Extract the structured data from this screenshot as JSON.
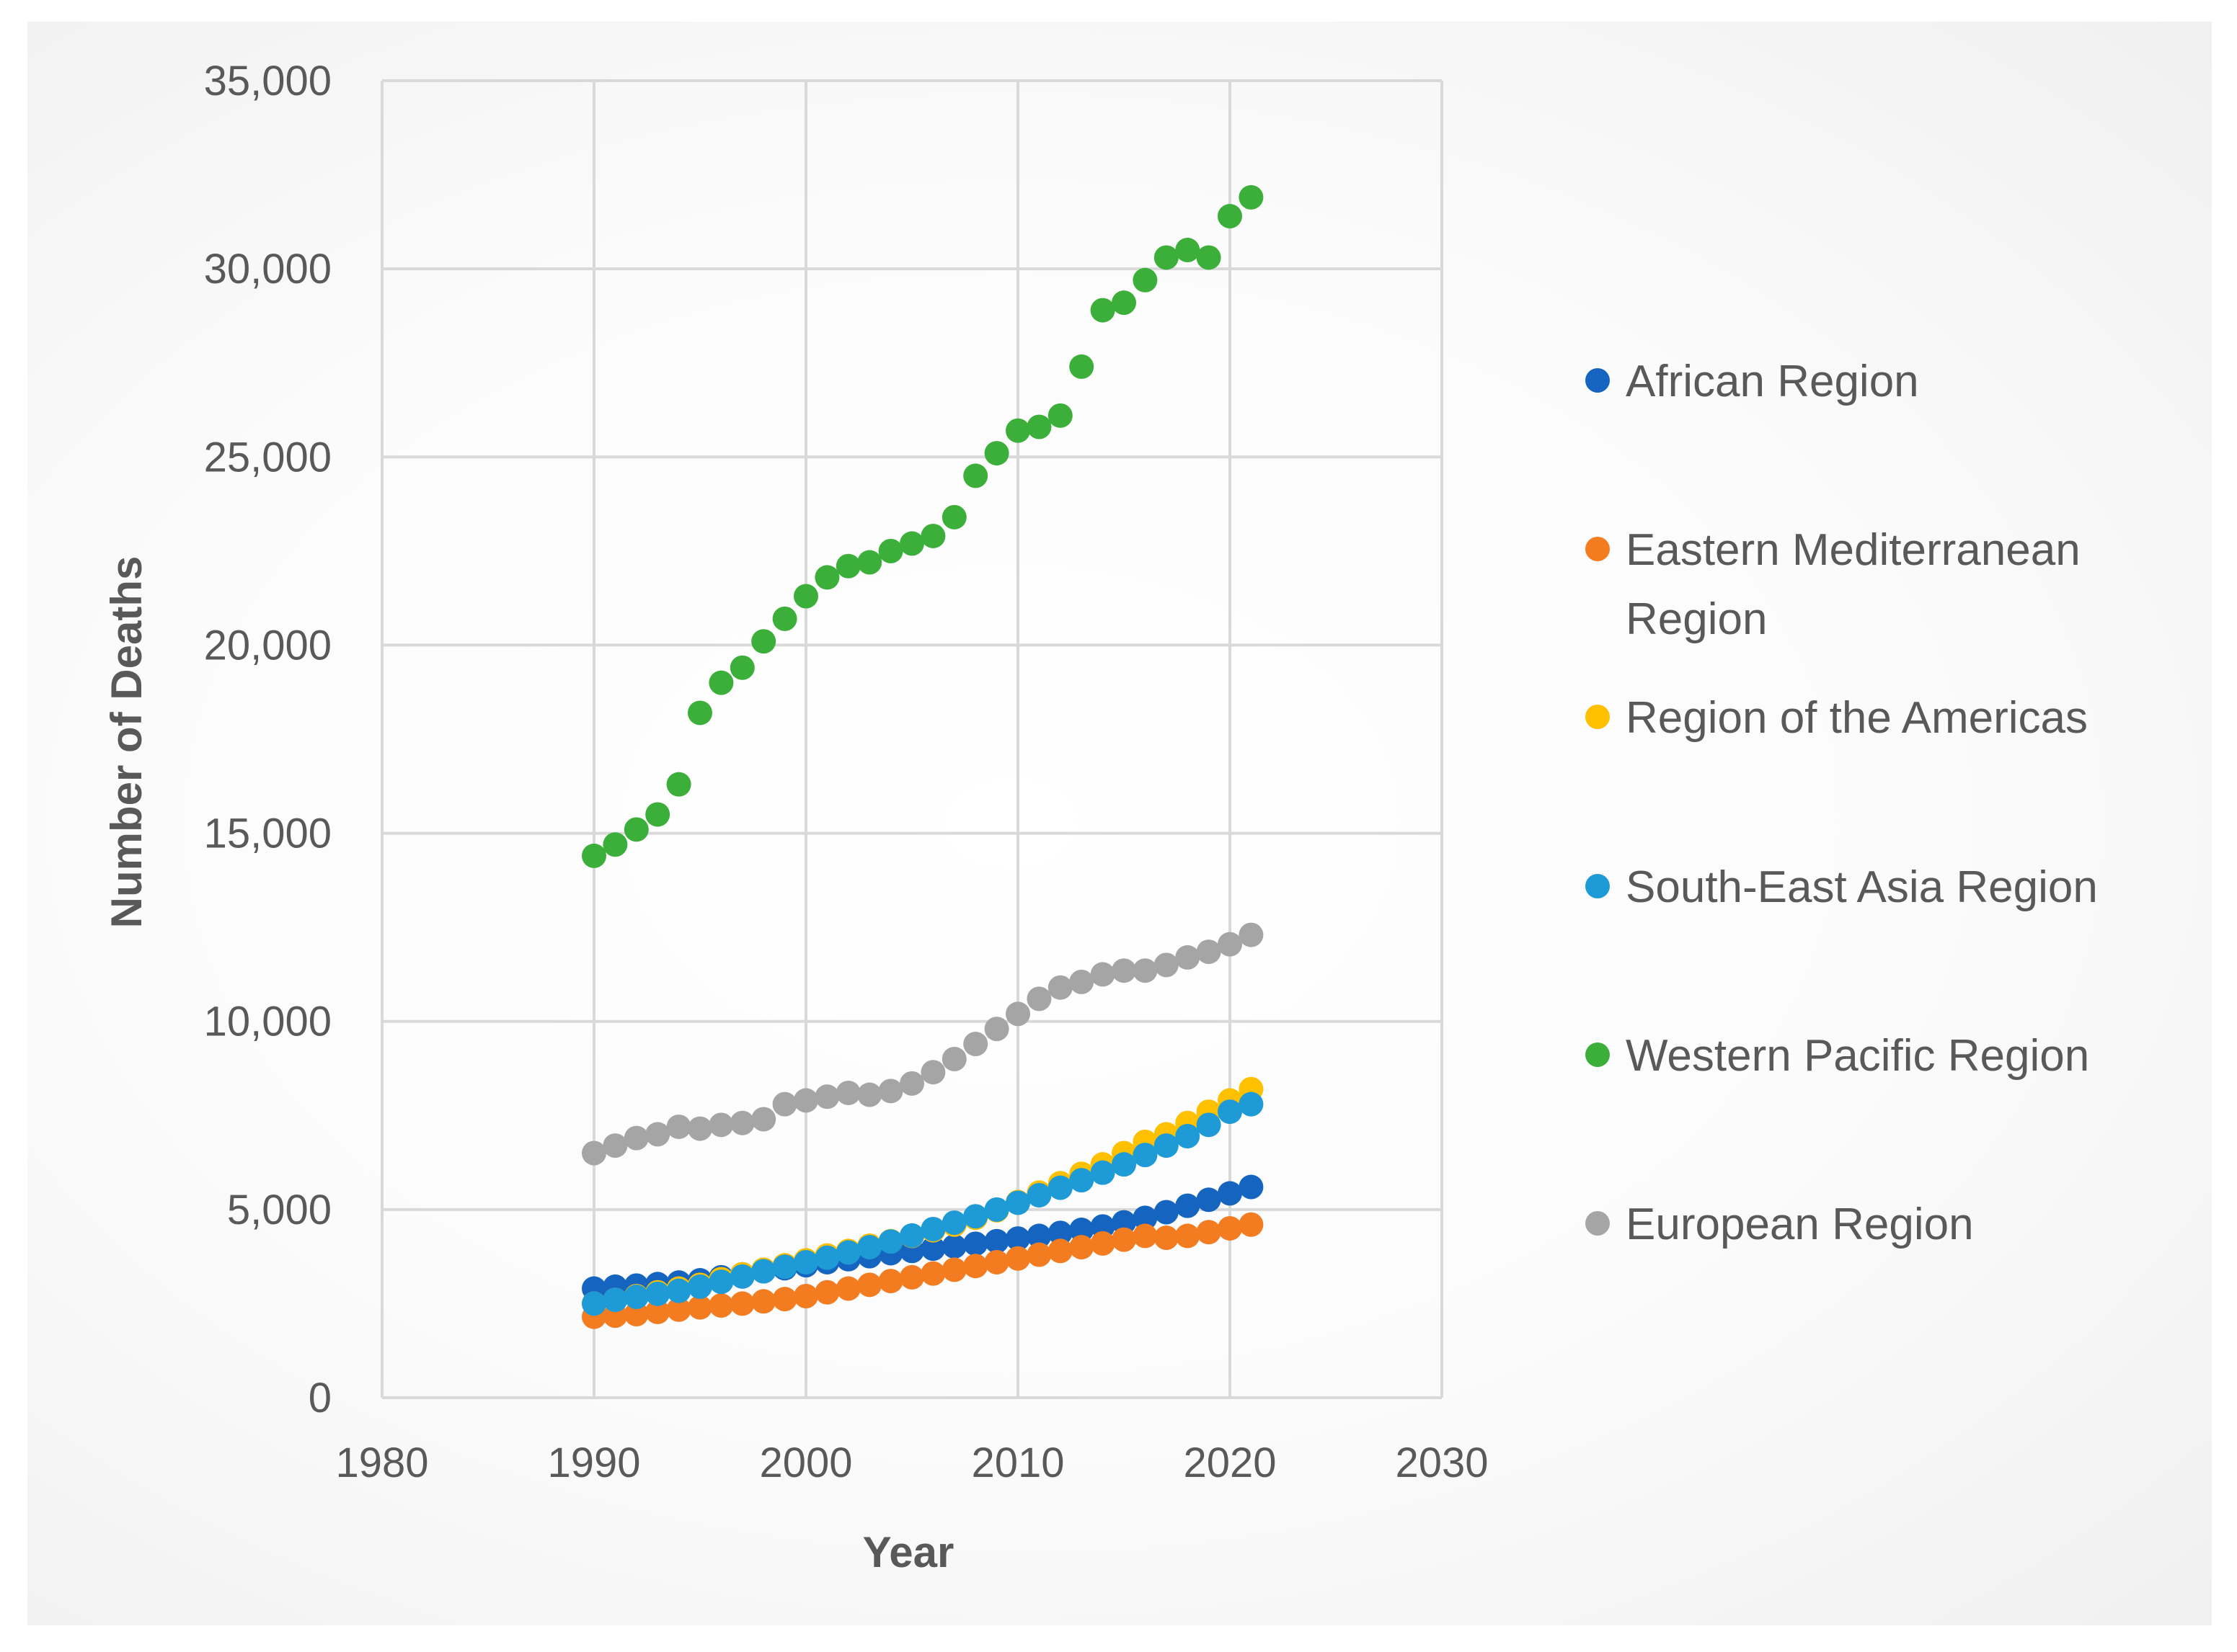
{
  "chart_data": {
    "type": "scatter",
    "title": "",
    "xlabel": "Year",
    "ylabel": "Number of Deaths",
    "xlim": [
      1980,
      2030
    ],
    "ylim": [
      0,
      35000
    ],
    "xticks": [
      "1980",
      "1990",
      "2000",
      "2010",
      "2020",
      "2030"
    ],
    "yticks": [
      "0",
      "5,000",
      "10,000",
      "15,000",
      "20,000",
      "25,000",
      "30,000",
      "35,000"
    ],
    "grid": true,
    "legend_position": "right",
    "x": [
      1990,
      1991,
      1992,
      1993,
      1994,
      1995,
      1996,
      1997,
      1998,
      1999,
      2000,
      2001,
      2002,
      2003,
      2004,
      2005,
      2006,
      2007,
      2008,
      2009,
      2010,
      2011,
      2012,
      2013,
      2014,
      2015,
      2016,
      2017,
      2018,
      2019,
      2020,
      2021
    ],
    "series": [
      {
        "name": "African Region",
        "color": "#1565C0",
        "values": [
          2900,
          2950,
          2980,
          3020,
          3060,
          3120,
          3200,
          3280,
          3360,
          3440,
          3520,
          3600,
          3680,
          3760,
          3840,
          3900,
          3960,
          4020,
          4090,
          4160,
          4230,
          4300,
          4380,
          4460,
          4550,
          4660,
          4780,
          4930,
          5100,
          5260,
          5430,
          5600
        ]
      },
      {
        "name": "Eastern Mediterranean Region",
        "color": "#F47C20",
        "values": [
          2150,
          2180,
          2220,
          2280,
          2340,
          2400,
          2450,
          2500,
          2560,
          2620,
          2700,
          2800,
          2900,
          3000,
          3100,
          3200,
          3300,
          3400,
          3500,
          3600,
          3700,
          3800,
          3900,
          4000,
          4100,
          4200,
          4300,
          4250,
          4300,
          4400,
          4500,
          4600
        ]
      },
      {
        "name": "Region of the Americas",
        "color": "#FFC000",
        "values": [
          2500,
          2600,
          2700,
          2800,
          2900,
          3000,
          3150,
          3280,
          3400,
          3520,
          3650,
          3780,
          3900,
          4040,
          4160,
          4300,
          4450,
          4600,
          4780,
          4980,
          5200,
          5450,
          5700,
          5950,
          6200,
          6500,
          6800,
          7000,
          7300,
          7600,
          7900,
          8200
        ]
      },
      {
        "name": "South-East Asia Region",
        "color": "#1E9AD6",
        "values": [
          2500,
          2600,
          2680,
          2760,
          2840,
          2950,
          3080,
          3220,
          3360,
          3480,
          3600,
          3720,
          3860,
          4000,
          4150,
          4310,
          4480,
          4650,
          4820,
          5000,
          5180,
          5380,
          5580,
          5780,
          5980,
          6200,
          6450,
          6700,
          6950,
          7250,
          7600,
          7800
        ]
      },
      {
        "name": "Western Pacific Region",
        "color": "#3CAF3A",
        "values": [
          14400,
          14700,
          15100,
          15500,
          16300,
          18200,
          19000,
          19400,
          20100,
          20700,
          21300,
          21800,
          22100,
          22200,
          22500,
          22700,
          22900,
          23400,
          24500,
          25100,
          25700,
          25800,
          26100,
          27400,
          28900,
          29100,
          29700,
          30300,
          30500,
          30300,
          31400,
          31900
        ]
      },
      {
        "name": "European Region",
        "color": "#A5A5A5",
        "values": [
          6500,
          6700,
          6900,
          7000,
          7200,
          7150,
          7250,
          7300,
          7400,
          7800,
          7900,
          8000,
          8100,
          8050,
          8150,
          8350,
          8650,
          9000,
          9400,
          9800,
          10200,
          10600,
          10900,
          11050,
          11250,
          11350,
          11350,
          11500,
          11700,
          11850,
          12050,
          12300
        ]
      }
    ]
  }
}
